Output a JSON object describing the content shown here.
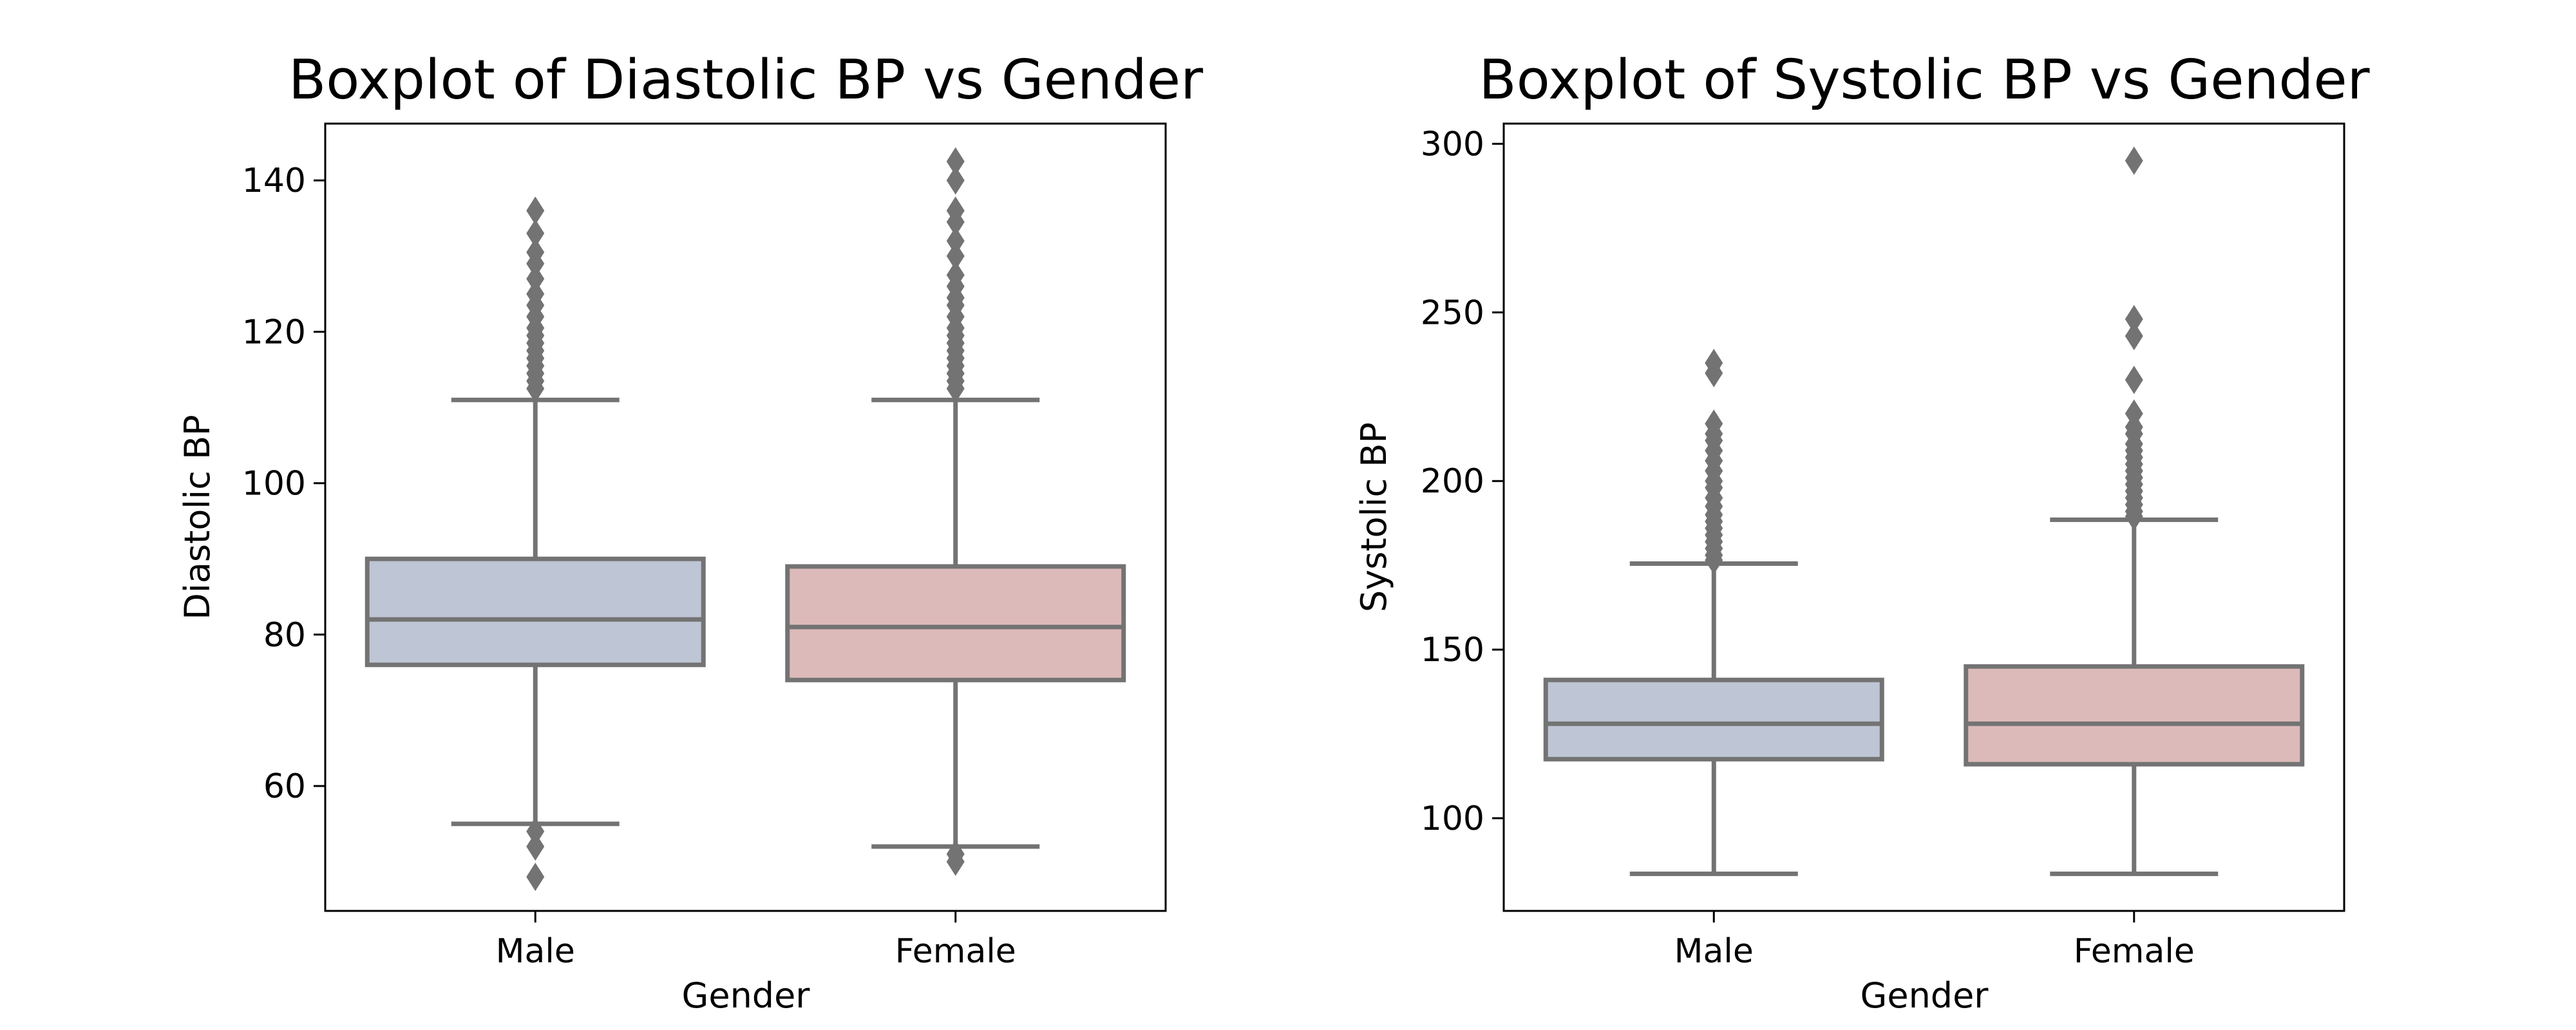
{
  "chart_data": [
    {
      "type": "box",
      "title": "Boxplot of Diastolic BP vs Gender",
      "xlabel": "Gender",
      "ylabel": "Diastolic BP",
      "ylim": [
        43.5,
        147.5
      ],
      "yticks": [
        60,
        80,
        100,
        120,
        140
      ],
      "categories": [
        "Male",
        "Female"
      ],
      "boxes": [
        {
          "category": "Male",
          "color": "#bec5d4",
          "whisker_low": 55,
          "q1": 76,
          "median": 82,
          "q3": 90,
          "whisker_high": 111,
          "outliers": [
            48,
            52,
            54,
            112.5,
            113.5,
            114.5,
            115.5,
            116.5,
            117.5,
            118.5,
            119.5,
            120.5,
            122,
            123.5,
            125,
            127,
            129,
            130.5,
            133,
            136
          ]
        },
        {
          "category": "Female",
          "color": "#dcbab9",
          "whisker_low": 52,
          "q1": 74,
          "median": 81,
          "q3": 89,
          "whisker_high": 111,
          "outliers": [
            50,
            51,
            112.5,
            113.5,
            114.5,
            115.5,
            116.5,
            117.5,
            118.5,
            119.5,
            120.5,
            122,
            123.5,
            124.5,
            126,
            127.5,
            130,
            132,
            134.5,
            136,
            140,
            142.5
          ]
        }
      ]
    },
    {
      "type": "box",
      "title": "Boxplot of Systolic BP vs Gender",
      "xlabel": "Gender",
      "ylabel": "Systolic BP",
      "ylim": [
        72.5,
        306
      ],
      "yticks": [
        100,
        150,
        200,
        250,
        300
      ],
      "categories": [
        "Male",
        "Female"
      ],
      "boxes": [
        {
          "category": "Male",
          "color": "#bec5d4",
          "whisker_low": 83.5,
          "q1": 117.5,
          "median": 128,
          "q3": 141,
          "whisker_high": 175.5,
          "outliers": [
            176.5,
            178,
            180,
            182,
            184,
            186,
            188,
            190,
            192.5,
            195,
            198,
            200,
            203,
            206,
            209,
            212,
            214,
            217,
            232,
            235
          ]
        },
        {
          "category": "Female",
          "color": "#dcbab9",
          "whisker_low": 83.5,
          "q1": 116,
          "median": 128,
          "q3": 145,
          "whisker_high": 188.5,
          "outliers": [
            189.5,
            191,
            193,
            195,
            197,
            199,
            201,
            203,
            205,
            207,
            209,
            211,
            214,
            216,
            220,
            230,
            243,
            248,
            295
          ]
        }
      ]
    }
  ]
}
